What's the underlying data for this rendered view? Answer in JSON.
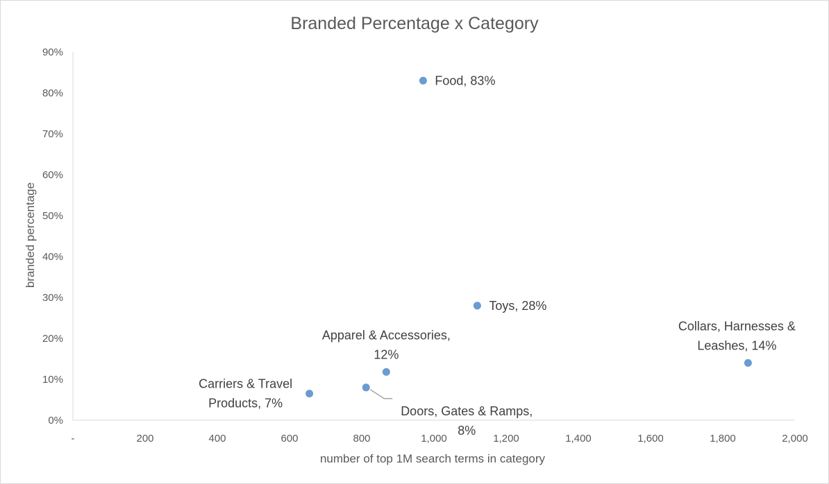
{
  "chart_data": {
    "type": "scatter",
    "title": "Branded Percentage x Category",
    "xlabel": "number of top 1M search terms in category",
    "ylabel": "branded percentage",
    "xlim": [
      0,
      2000
    ],
    "ylim": [
      0,
      0.9
    ],
    "x_ticks": [
      {
        "value": 0,
        "label": "-"
      },
      {
        "value": 200,
        "label": "200"
      },
      {
        "value": 400,
        "label": "400"
      },
      {
        "value": 600,
        "label": "600"
      },
      {
        "value": 800,
        "label": "800"
      },
      {
        "value": 1000,
        "label": "1,000"
      },
      {
        "value": 1200,
        "label": "1,200"
      },
      {
        "value": 1400,
        "label": "1,400"
      },
      {
        "value": 1600,
        "label": "1,600"
      },
      {
        "value": 1800,
        "label": "1,800"
      },
      {
        "value": 2000,
        "label": "2,000"
      }
    ],
    "y_ticks": [
      {
        "value": 0.0,
        "label": "0%"
      },
      {
        "value": 0.1,
        "label": "10%"
      },
      {
        "value": 0.2,
        "label": "20%"
      },
      {
        "value": 0.3,
        "label": "30%"
      },
      {
        "value": 0.4,
        "label": "40%"
      },
      {
        "value": 0.5,
        "label": "50%"
      },
      {
        "value": 0.6,
        "label": "60%"
      },
      {
        "value": 0.7,
        "label": "70%"
      },
      {
        "value": 0.8,
        "label": "80%"
      },
      {
        "value": 0.9,
        "label": "90%"
      }
    ],
    "grid": false,
    "legend": "none",
    "marker_color": "#6a9bd1",
    "points": [
      {
        "category": "Food",
        "x": 970,
        "y": 0.83,
        "label": [
          "Food, 83%"
        ]
      },
      {
        "category": "Toys",
        "x": 1120,
        "y": 0.28,
        "label": [
          "Toys, 28%"
        ]
      },
      {
        "category": "Collars, Harnesses & Leashes",
        "x": 1870,
        "y": 0.14,
        "label": [
          "Collars, Harnesses &",
          "Leashes, 14%"
        ]
      },
      {
        "category": "Apparel & Accessories",
        "x": 868,
        "y": 0.118,
        "label": [
          "Apparel & Accessories,",
          "12%"
        ]
      },
      {
        "category": "Doors, Gates & Ramps",
        "x": 812,
        "y": 0.08,
        "label": [
          "Doors, Gates & Ramps,",
          "8%"
        ]
      },
      {
        "category": "Carriers & Travel Products",
        "x": 655,
        "y": 0.065,
        "label": [
          "Carriers & Travel",
          "Products, 7%"
        ]
      }
    ]
  }
}
